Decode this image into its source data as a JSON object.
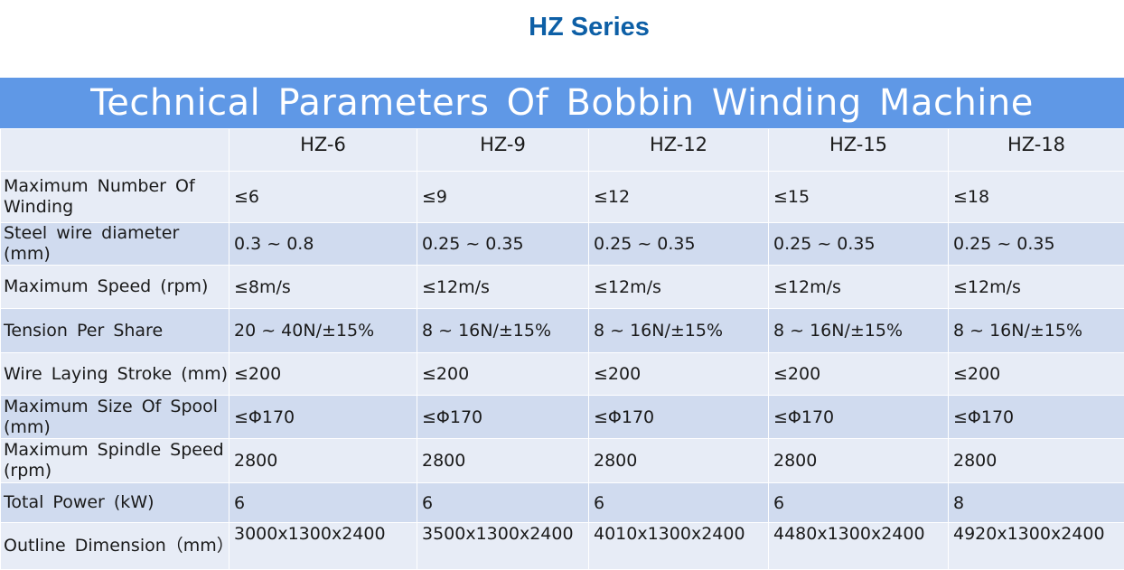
{
  "page": {
    "series_title": "HZ Series",
    "table_title": "Technical Parameters Of Bobbin Winding Machine"
  },
  "table": {
    "columns": [
      "",
      "HZ-6",
      "HZ-9",
      "HZ-12",
      "HZ-15",
      "HZ-18"
    ],
    "rows": [
      {
        "label": "Maximum Number Of Winding",
        "values": [
          "≤6",
          "≤9",
          "≤12",
          "≤15",
          "≤18"
        ]
      },
      {
        "label": "Steel wire diameter (mm)",
        "values": [
          "0.3 ~ 0.8",
          "0.25 ~ 0.35",
          "0.25 ~ 0.35",
          "0.25 ~ 0.35",
          "0.25 ~ 0.35"
        ]
      },
      {
        "label": "Maximum Speed (rpm)",
        "values": [
          "≤8m/s",
          "≤12m/s",
          "≤12m/s",
          "≤12m/s",
          "≤12m/s"
        ]
      },
      {
        "label": "Tension Per Share",
        "values": [
          "20 ~ 40N/±15%",
          "8 ~ 16N/±15%",
          "8 ~ 16N/±15%",
          "8 ~ 16N/±15%",
          "8 ~ 16N/±15%"
        ]
      },
      {
        "label": "Wire Laying Stroke (mm)",
        "values": [
          "≤200",
          "≤200",
          "≤200",
          "≤200",
          "≤200"
        ]
      },
      {
        "label": "Maximum Size Of Spool (mm)",
        "values": [
          "≤Φ170",
          "≤Φ170",
          "≤Φ170",
          "≤Φ170",
          "≤Φ170"
        ]
      },
      {
        "label": "Maximum Spindle Speed (rpm)",
        "values": [
          "2800",
          "2800",
          "2800",
          "2800",
          "2800"
        ]
      },
      {
        "label": "Total Power (kW)",
        "values": [
          "6",
          "6",
          "6",
          "6",
          "8"
        ]
      },
      {
        "label": "Outline Dimension（mm）",
        "values": [
          "3000x1300x2400",
          "3500x1300x2400",
          "4010x1300x2400",
          "4480x1300x2400",
          "4920x1300x2400"
        ]
      }
    ]
  }
}
